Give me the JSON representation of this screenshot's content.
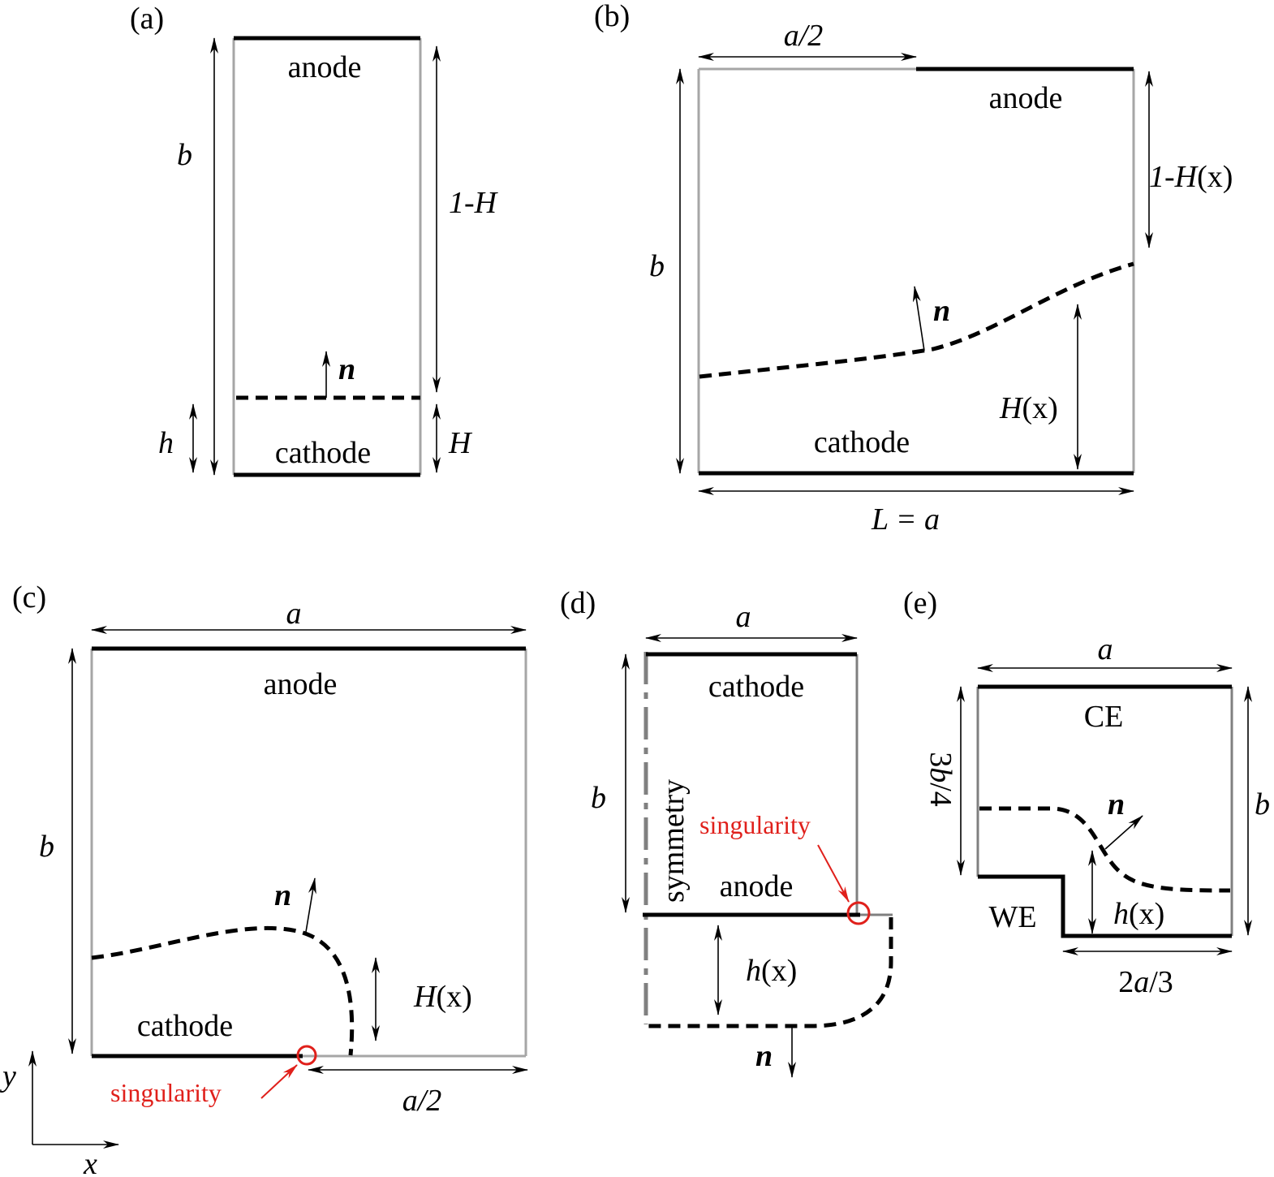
{
  "panels": {
    "a": {
      "label": "(a)",
      "anode": "anode",
      "cathode": "cathode",
      "dim_b": "b",
      "dim_h": "h",
      "dim_1mH": "1-H",
      "dim_H": "H",
      "normal": "n"
    },
    "b": {
      "label": "(b)",
      "anode": "anode",
      "cathode": "cathode",
      "dim_a2": "a/2",
      "dim_b": "b",
      "dim_1mHx_pre": "1-H",
      "dim_Hx_pre": "H",
      "dim_x_arg": "(x)",
      "dim_L_pre": "L = ",
      "dim_L_a": "a",
      "normal": "n"
    },
    "c": {
      "label": "(c)",
      "anode": "anode",
      "cathode": "cathode",
      "dim_a": "a",
      "dim_b": "b",
      "dim_Hx_pre": "H",
      "dim_x_arg": "(x)",
      "dim_a2": "a/2",
      "singularity": "singularity",
      "normal": "n",
      "axis_y": "y",
      "axis_x": "x"
    },
    "d": {
      "label": "(d)",
      "cathode": "cathode",
      "anode": "anode",
      "symmetry": "symmetry",
      "dim_a": "a",
      "dim_b": "b",
      "dim_hx_pre": "h",
      "dim_x_arg": "(x)",
      "singularity": "singularity",
      "normal": "n"
    },
    "e": {
      "label": "(e)",
      "ce": "CE",
      "we": "WE",
      "dim_a": "a",
      "dim_3b4_num": "3",
      "dim_3b4_b": "b",
      "dim_3b4_den": "/4",
      "dim_b": "b",
      "dim_hx_pre": "h",
      "dim_x_arg": "(x)",
      "dim_2a3_num": "2",
      "dim_2a3_a": "a",
      "dim_2a3_den": "/3",
      "normal": "n"
    }
  },
  "colors": {
    "electrode": "#000000",
    "wall": "#a6a6a6",
    "annotation": "#e0201b"
  }
}
